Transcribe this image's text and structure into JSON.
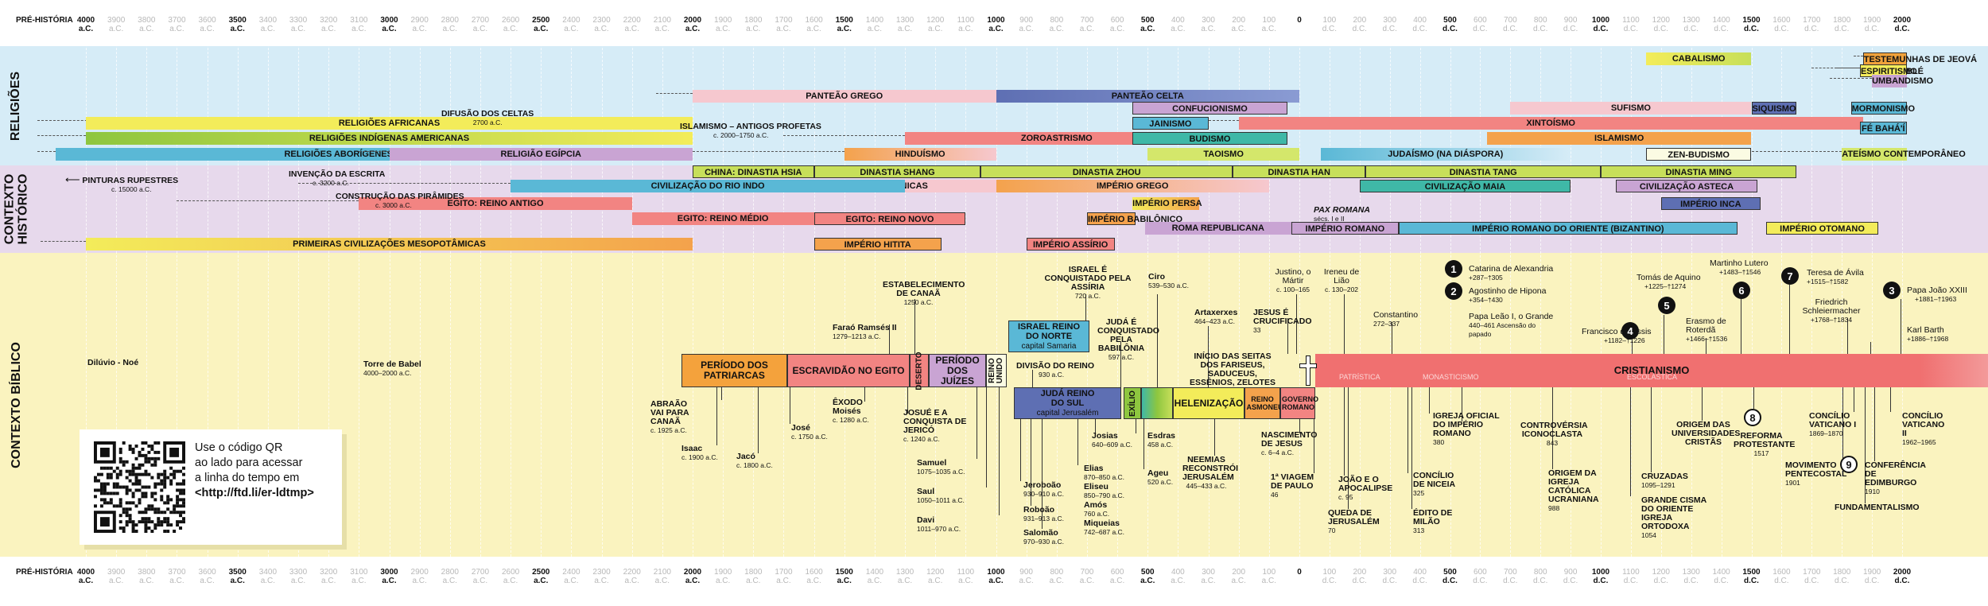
{
  "axis": {
    "prehistory": "PRÉ-HISTÓRIA",
    "ticks": [
      {
        "year": "4000",
        "era": "a.C.",
        "major": true
      },
      {
        "year": "3900",
        "era": "a.C.",
        "major": false
      },
      {
        "year": "3800",
        "era": "a.C.",
        "major": false
      },
      {
        "year": "3700",
        "era": "a.C.",
        "major": false
      },
      {
        "year": "3600",
        "era": "a.C.",
        "major": false
      },
      {
        "year": "3500",
        "era": "a.C.",
        "major": true
      },
      {
        "year": "3400",
        "era": "a.C.",
        "major": false
      },
      {
        "year": "3300",
        "era": "a.C.",
        "major": false
      },
      {
        "year": "3200",
        "era": "a.C.",
        "major": false
      },
      {
        "year": "3100",
        "era": "a.C.",
        "major": false
      },
      {
        "year": "3000",
        "era": "a.C.",
        "major": true
      },
      {
        "year": "2900",
        "era": "a.C.",
        "major": false
      },
      {
        "year": "2800",
        "era": "a.C.",
        "major": false
      },
      {
        "year": "2700",
        "era": "a.C.",
        "major": false
      },
      {
        "year": "2600",
        "era": "a.C.",
        "major": false
      },
      {
        "year": "2500",
        "era": "a.C.",
        "major": true
      },
      {
        "year": "2400",
        "era": "a.C.",
        "major": false
      },
      {
        "year": "2300",
        "era": "a.C.",
        "major": false
      },
      {
        "year": "2200",
        "era": "a.C.",
        "major": false
      },
      {
        "year": "2100",
        "era": "a.C.",
        "major": false
      },
      {
        "year": "2000",
        "era": "a.C.",
        "major": true
      },
      {
        "year": "1900",
        "era": "a.C.",
        "major": false
      },
      {
        "year": "1800",
        "era": "a.C.",
        "major": false
      },
      {
        "year": "1700",
        "era": "a.C.",
        "major": false
      },
      {
        "year": "1600",
        "era": "a.C.",
        "major": false
      },
      {
        "year": "1500",
        "era": "a.C.",
        "major": true
      },
      {
        "year": "1400",
        "era": "a.C.",
        "major": false
      },
      {
        "year": "1300",
        "era": "a.C.",
        "major": false
      },
      {
        "year": "1200",
        "era": "a.C.",
        "major": false
      },
      {
        "year": "1100",
        "era": "a.C.",
        "major": false
      },
      {
        "year": "1000",
        "era": "a.C.",
        "major": true
      },
      {
        "year": "900",
        "era": "a.C.",
        "major": false
      },
      {
        "year": "800",
        "era": "a.C.",
        "major": false
      },
      {
        "year": "700",
        "era": "a.C.",
        "major": false
      },
      {
        "year": "600",
        "era": "a.C.",
        "major": false
      },
      {
        "year": "500",
        "era": "a.C.",
        "major": true
      },
      {
        "year": "400",
        "era": "a.C.",
        "major": false
      },
      {
        "year": "300",
        "era": "a.C.",
        "major": false
      },
      {
        "year": "200",
        "era": "a.C.",
        "major": false
      },
      {
        "year": "100",
        "era": "a.C.",
        "major": false
      },
      {
        "year": "0",
        "era": "",
        "major": true
      },
      {
        "year": "100",
        "era": "d.C.",
        "major": false
      },
      {
        "year": "200",
        "era": "d.C.",
        "major": false
      },
      {
        "year": "300",
        "era": "d.C.",
        "major": false
      },
      {
        "year": "400",
        "era": "d.C.",
        "major": false
      },
      {
        "year": "500",
        "era": "d.C.",
        "major": true
      },
      {
        "year": "600",
        "era": "d.C.",
        "major": false
      },
      {
        "year": "700",
        "era": "d.C.",
        "major": false
      },
      {
        "year": "800",
        "era": "d.C.",
        "major": false
      },
      {
        "year": "900",
        "era": "d.C.",
        "major": false
      },
      {
        "year": "1000",
        "era": "d.C.",
        "major": true
      },
      {
        "year": "1100",
        "era": "d.C.",
        "major": false
      },
      {
        "year": "1200",
        "era": "d.C.",
        "major": false
      },
      {
        "year": "1300",
        "era": "d.C.",
        "major": false
      },
      {
        "year": "1400",
        "era": "d.C.",
        "major": false
      },
      {
        "year": "1500",
        "era": "d.C.",
        "major": true
      },
      {
        "year": "1600",
        "era": "d.C.",
        "major": false
      },
      {
        "year": "1700",
        "era": "d.C.",
        "major": false
      },
      {
        "year": "1800",
        "era": "d.C.",
        "major": false
      },
      {
        "year": "1900",
        "era": "d.C.",
        "major": false
      },
      {
        "year": "2000",
        "era": "d.C.",
        "major": true
      }
    ]
  },
  "sections": {
    "religions": "RELIGIÕES",
    "historical": "CONTEXTO HISTÓRICO",
    "biblical": "CONTEXTO BÍBLICO"
  },
  "religions": [
    {
      "label": "TESTEMUNHAS DE JEOVÁ",
      "start": 1870,
      "end": 2015,
      "color": "#f0a23c",
      "dash_from": 1840,
      "outline": true
    },
    {
      "label": "CABALISMO",
      "start": 1150,
      "end": 1500,
      "color": "#f3ec5a",
      "grad": "#c7df5a"
    },
    {
      "label": "CANDOMBLÉ",
      "start": 1880,
      "end": 2015,
      "color": "#f5b3b3",
      "dash_from": 1780,
      "outline": true
    },
    {
      "label": "ESPIRITISMO",
      "start": 1860,
      "end": 2015,
      "color": "#f3ec5a",
      "dash_from": 1700,
      "outline": true
    },
    {
      "label": "UMBANDISMO",
      "start": 1900,
      "end": 2015,
      "color": "#c9a4d3",
      "dash_from": 1760
    },
    {
      "label": "PANTEÃO CELTA",
      "start": -1000,
      "end": 0,
      "color": "#5e6fb3",
      "grad": "#8a9bd3",
      "dash_from": -1300
    },
    {
      "label": "PANTEÃO GREGO",
      "start": -2000,
      "end": -1000,
      "color": "#f6c8cf",
      "dash_from": -2120
    },
    {
      "label": "CONFUCIONISMO",
      "start": -550,
      "end": -40,
      "color": "#c9a4d3",
      "outline": true
    },
    {
      "label": "SUFISMO",
      "start": 700,
      "end": 1500,
      "color": "#f6c8cf"
    },
    {
      "label": "SIQUISMO",
      "start": 1500,
      "end": 1650,
      "color": "#5e6fb3",
      "outline": true
    },
    {
      "label": "MORMONISMO",
      "start": 1830,
      "end": 2015,
      "color": "#5ab8d6",
      "outline": true
    },
    {
      "label": "RELIGIÕES AFRICANAS",
      "start": -4000,
      "end": -2000,
      "color": "#f3ec5a",
      "dash_from": -4160,
      "dash_to": -3500
    },
    {
      "label": "JAINISMO",
      "start": -550,
      "end": -300,
      "color": "#5ab8d6",
      "outline": true
    },
    {
      "label": "XINTOÍSMO",
      "start": -200,
      "end": 1870,
      "color": "#f28482",
      "dash_from": -300
    },
    {
      "label": "FÉ BAHÁ'Í",
      "start": 1860,
      "end": 2015,
      "color": "#5ab8d6",
      "outline": true
    },
    {
      "label": "RELIGIÕES INDÍGENAS AMERICANAS",
      "start": -4000,
      "end": -2000,
      "color": "#8ec63f",
      "grad": "#f3ec5a",
      "dash_from": -4160
    },
    {
      "label": "ZOROASTRISMO",
      "start": -1300,
      "end": -300,
      "color": "#f28482",
      "dash_from": -1700
    },
    {
      "label": "BUDISMO",
      "start": -550,
      "end": -40,
      "color": "#3fb8a7",
      "outline": true
    },
    {
      "label": "ISLAMISMO",
      "start": 622,
      "end": 1500,
      "color": "#f4a24c"
    },
    {
      "label": "RELIGIÕES ABORÍGENES AUSTRALIANAS",
      "start": -4100,
      "end": -2000,
      "color": "#5ab8d6",
      "dash_from": -4160
    },
    {
      "label": "RELIGIÃO EGÍPCIA",
      "start": -3000,
      "end": -2000,
      "color": "#c9a4d3",
      "dash_from": -3100
    },
    {
      "label": "HINDUÍSMO",
      "start": -1500,
      "end": -1000,
      "color": "#f4a24c",
      "grad": "#f6c8cf",
      "dash_from": -2000
    },
    {
      "label": "TAOISMO",
      "start": -500,
      "end": 0,
      "color": "#d4e76b"
    },
    {
      "label": "JUDAÍSMO (NA DIÁSPORA)",
      "start": 70,
      "end": 900,
      "color": "#5ab8d6",
      "grad": "#d6ecf7"
    },
    {
      "label": "ZEN-BUDISMO",
      "start": 1150,
      "end": 1500,
      "color": "#fbfbe3",
      "outline": true
    },
    {
      "label": "ATEÍSMO CONTEMPORÂNEO",
      "start": 1800,
      "end": 2015,
      "color": "#d4e76b",
      "dash_from": 1500
    }
  ],
  "religion_notes": [
    {
      "title": "DIFUSÃO DOS CELTAS",
      "sub": "2700 a.C."
    },
    {
      "title": "ISLAMISMO – ANTIGOS PROFETAS",
      "sub": "c. 2000–1750 a.C."
    }
  ],
  "historical": [
    {
      "label": "CHINA: DINASTIA HSIA",
      "start": -2000,
      "end": -1600,
      "color": "#c7df5a",
      "outline": true
    },
    {
      "label": "DINASTIA SHANG",
      "start": -1600,
      "end": -1050,
      "color": "#c7df5a",
      "outline": true
    },
    {
      "label": "DINASTIA ZHOU",
      "start": -1050,
      "end": -220,
      "color": "#c7df5a",
      "outline": true
    },
    {
      "label": "DINASTIA HAN",
      "start": -220,
      "end": 220,
      "color": "#c7df5a",
      "outline": true
    },
    {
      "label": "DINASTIA TANG",
      "start": 220,
      "end": 1000,
      "color": "#c7df5a",
      "outline": true
    },
    {
      "label": "DINASTIA MING",
      "start": 1000,
      "end": 1650,
      "color": "#c7df5a",
      "outline": true
    },
    {
      "label": "CIVILIZAÇÕES MINOICAS E MICÊNICAS",
      "start": -2000,
      "end": -1000,
      "color": "#f6c8cf"
    },
    {
      "label": "IMPÉRIO GREGO",
      "start": -1000,
      "end": -100,
      "color": "#f4a24c",
      "grad": "#f6c8cf"
    },
    {
      "label": "CIVILIZAÇÃO MAIA",
      "start": 200,
      "end": 900,
      "color": "#3fb8a7",
      "outline": true
    },
    {
      "label": "CIVILIZAÇÃO ASTECA",
      "start": 1050,
      "end": 1520,
      "color": "#c9a4d3",
      "outline": true
    },
    {
      "label": "CIVILIZAÇÃO DO RIO INDO",
      "start": -2600,
      "end": -1300,
      "color": "#5ab8d6",
      "dash_from": -3300
    },
    {
      "label": "IMPÉRIO PERSA",
      "start": -550,
      "end": -330,
      "color": "#f3ec5a",
      "grad": "#f4a24c"
    },
    {
      "label": "IMPÉRIO INCA",
      "start": 1200,
      "end": 1530,
      "color": "#5e6fb3",
      "outline": true
    },
    {
      "label": "EGITO: REINO ANTIGO",
      "start": -3100,
      "end": -2200,
      "color": "#f28482",
      "dash_from": -3700
    },
    {
      "label": "EGITO: REINO MÉDIO",
      "start": -2200,
      "end": -1600,
      "color": "#f28482"
    },
    {
      "label": "EGITO: REINO NOVO",
      "start": -1600,
      "end": -1100,
      "color": "#f28482",
      "outline": true
    },
    {
      "label": "IMPÉRIO BABILÔNICO",
      "start": -700,
      "end": -539,
      "color": "#f4a24c",
      "outline": true
    },
    {
      "label": "ROMA REPUBLICANA",
      "start": -509,
      "end": -27,
      "color": "#c9a4d3"
    },
    {
      "label": "IMPÉRIO ROMANO",
      "start": -27,
      "end": 330,
      "color": "#c9a4d3",
      "outline": true
    },
    {
      "label": "IMPÉRIO ROMANO DO ORIENTE (BIZANTINO)",
      "start": 330,
      "end": 1453,
      "color": "#5ab8d6",
      "outline": true
    },
    {
      "label": "IMPÉRIO OTOMANO",
      "start": 1550,
      "end": 1920,
      "color": "#f3ec5a",
      "outline": true
    },
    {
      "label": "PRIMEIRAS CIVILIZAÇÕES MESOPOTÂMICAS",
      "start": -4000,
      "end": -2000,
      "color": "#f3ec5a",
      "grad": "#f4a24c",
      "dash_from": -4150
    },
    {
      "label": "IMPÉRIO HITITA",
      "start": -1600,
      "end": -1180,
      "color": "#f4a24c",
      "outline": true
    },
    {
      "label": "IMPÉRIO ASSÍRIO",
      "start": -900,
      "end": -609,
      "color": "#f28482",
      "outline": true
    }
  ],
  "historical_notes": [
    {
      "title": "PINTURAS RUPESTRES",
      "sub": "c. 15000 a.C."
    },
    {
      "title": "INVENÇÃO DA ESCRITA",
      "sub": "c. 3200 a.C."
    },
    {
      "title": "CONSTRUÇÃO DAS PIRÂMIDES",
      "sub": "c. 3000 a.C."
    },
    {
      "title": "PAX ROMANA",
      "sub": "sécs. I e II"
    }
  ],
  "bible_boxes": [
    {
      "label": "PERÍODO DOS PATRIARCAS",
      "color": "#f4a23c"
    },
    {
      "label": "ESCRAVIDÃO NO EGITO",
      "color": "#f28482"
    },
    {
      "label": "DESERTO",
      "color": "#f28482",
      "vertical": true
    },
    {
      "label": "PERÍODO DOS JUÍZES",
      "color": "#c9a4d3"
    },
    {
      "label": "REINO UNIDO",
      "color": "#fbfbe3",
      "vertical": true
    },
    {
      "label": "ISRAEL REINO DO NORTE",
      "sub": "capital Samaria",
      "color": "#5ab8d6"
    },
    {
      "label": "JUDÁ REINO DO SUL",
      "sub": "capital Jerusalém",
      "color": "#5e6fb3"
    },
    {
      "label": "EXÍLIO",
      "color": "#8ec63f",
      "vertical": true
    },
    {
      "label": "HELENIZAÇÃO",
      "color": "#f3ec5a"
    },
    {
      "label": "REINO ASMONEU",
      "color": "#f4a24c"
    },
    {
      "label": "GOVERNO ROMANO",
      "color": "#f28482"
    },
    {
      "label": "CRISTIANISMO",
      "color": "#f07070"
    }
  ],
  "christian_eras": [
    "PATRÍSTICA",
    "MONASTICISMO",
    "ESCOLÁSTICA"
  ],
  "bible_events": [
    {
      "title": "Dilúvio - Noé",
      "sub": ""
    },
    {
      "title": "Torre de Babel",
      "sub": "4000–2000 a.C."
    },
    {
      "title": "ABRAÃO VAI PARA CANAÃ",
      "sub": "c. 1925 a.C."
    },
    {
      "title": "Isaac",
      "sub": "c. 1900 a.C."
    },
    {
      "title": "Jacó",
      "sub": "c. 1800 a.C."
    },
    {
      "title": "José",
      "sub": "c. 1750 a.C."
    },
    {
      "title": "Faraó Ramsés II",
      "sub": "1279–1213 a.C."
    },
    {
      "title": "ESTABELECIMENTO DE CANAÃ",
      "sub": "1250 a.C."
    },
    {
      "title": "ÊXODO Moisés",
      "sub": "c. 1280 a.C."
    },
    {
      "title": "JOSUÉ E A CONQUISTA DE JERICÓ",
      "sub": "c. 1240 a.C."
    },
    {
      "title": "Samuel",
      "sub": "1075–1035 a.C."
    },
    {
      "title": "Saul",
      "sub": "1050–1011 a.C."
    },
    {
      "title": "Davi",
      "sub": "1011–970 a.C."
    },
    {
      "title": "DIVISÃO DO REINO",
      "sub": "930 a.C."
    },
    {
      "title": "ISRAEL É CONQUISTADO PELA ASSÍRIA",
      "sub": "720 a.C."
    },
    {
      "title": "JUDÁ É CONQUISTADO PELA BABILÔNIA",
      "sub": "597 a.C."
    },
    {
      "title": "Jeroboão",
      "sub": "930–910 a.C."
    },
    {
      "title": "Roboão",
      "sub": "931–913 a.C."
    },
    {
      "title": "Salomão",
      "sub": "970–930 a.C."
    },
    {
      "title": "Elias",
      "sub": "870–850 a.C."
    },
    {
      "title": "Eliseu",
      "sub": "850–790 a.C."
    },
    {
      "title": "Amós",
      "sub": "760 a.C."
    },
    {
      "title": "Miqueias",
      "sub": "742–687 a.C."
    },
    {
      "title": "Josias",
      "sub": "640–609 a.C."
    },
    {
      "title": "Esdras",
      "sub": "458 a.C."
    },
    {
      "title": "Ageu",
      "sub": "520 a.C."
    },
    {
      "title": "Ciro",
      "sub": "539–530 a.C."
    },
    {
      "title": "Artaxerxes",
      "sub": "464–423 a.C."
    },
    {
      "title": "INÍCIO DAS SEITAS DOS FARISEUS, SADUCEUS, ESSÊNIOS, ZELOTES",
      "sub": ""
    },
    {
      "title": "NEEMIAS RECONSTRÓI JERUSALÉM",
      "sub": "445–433 a.C."
    },
    {
      "title": "NASCIMENTO DE JESUS",
      "sub": "c. 6–4 a.C."
    },
    {
      "title": "JESUS É CRUCIFICADO",
      "sub": "33"
    },
    {
      "title": "Justino, o Mártir",
      "sub": "c. 100–165"
    },
    {
      "title": "Ireneu de Lião",
      "sub": "c. 130–202"
    },
    {
      "title": "1ª VIAGEM DE PAULO",
      "sub": "46"
    },
    {
      "title": "JOÃO E O APOCALIPSE",
      "sub": "c. 95"
    },
    {
      "title": "QUEDA DE JERUSALÉM",
      "sub": "70"
    },
    {
      "title": "Constantino",
      "sub": "272–337"
    },
    {
      "title": "CONCÍLIO DE NICEIA",
      "sub": "325"
    },
    {
      "title": "ÉDITO DE MILÃO",
      "sub": "313"
    },
    {
      "title": "IGREJA OFICIAL DO IMPÉRIO ROMANO",
      "sub": "380"
    },
    {
      "title": "Catarina de Alexandria",
      "sub": "+287–†305"
    },
    {
      "title": "Agostinho de Hipona",
      "sub": "+354–†430"
    },
    {
      "title": "Papa Leão I, o Grande",
      "sub": "440–461 Ascensão do papado"
    },
    {
      "title": "CONTROVÉRSIA ICONOCLASTA",
      "sub": "843"
    },
    {
      "title": "ORIGEM DA IGREJA CATÓLICA UCRANIANA",
      "sub": "988"
    },
    {
      "title": "GRANDE CISMA DO ORIENTE IGREJA ORTODOXA",
      "sub": "1054"
    },
    {
      "title": "CRUZADAS",
      "sub": "1095–1291"
    },
    {
      "title": "Francisco de Assis",
      "sub": "+1182–†1226"
    },
    {
      "title": "Tomás de Aquino",
      "sub": "+1225–†1274"
    },
    {
      "title": "ORIGEM DAS UNIVERSIDADES CRISTÃS",
      "sub": ""
    },
    {
      "title": "Erasmo de Roterdã",
      "sub": "+1466–†1536"
    },
    {
      "title": "Martinho Lutero",
      "sub": "+1483–†1546"
    },
    {
      "title": "REFORMA PROTESTANTE",
      "sub": "1517"
    },
    {
      "title": "Teresa de Ávila",
      "sub": "+1515–†1582"
    },
    {
      "title": "Friedrich Schleiermacher",
      "sub": "+1768–†1834"
    },
    {
      "title": "Papa João XXIII",
      "sub": "+1881–†1963"
    },
    {
      "title": "Karl Barth",
      "sub": "+1886–†1968"
    },
    {
      "title": "CONCÍLIO VATICANO I",
      "sub": "1869–1870"
    },
    {
      "title": "MOVIMENTO PENTECOSTAL",
      "sub": "1901"
    },
    {
      "title": "FUNDAMENTALISMO",
      "sub": ""
    },
    {
      "title": "CONFERÊNCIA DE EDIMBURGO",
      "sub": "1910"
    },
    {
      "title": "CONCÍLIO VATICANO II",
      "sub": "1962–1965"
    }
  ],
  "numbered_markers": [
    {
      "n": "1",
      "style": "dark"
    },
    {
      "n": "2",
      "style": "dark"
    },
    {
      "n": "3",
      "style": "dark"
    },
    {
      "n": "4",
      "style": "dark"
    },
    {
      "n": "5",
      "style": "dark"
    },
    {
      "n": "6",
      "style": "dark"
    },
    {
      "n": "7",
      "style": "dark"
    },
    {
      "n": "8",
      "style": "light"
    },
    {
      "n": "9",
      "style": "light"
    }
  ],
  "qr": {
    "line1": "Use o código QR",
    "line2": "ao lado para acessar",
    "line3": "a linha do tempo em",
    "url": "<http://ftd.li/er-ldtmp>"
  },
  "colors": {
    "religions_band": "#d6ecf7",
    "historical_band": "#e7d9ec",
    "biblical_band": "#faf3bf"
  }
}
